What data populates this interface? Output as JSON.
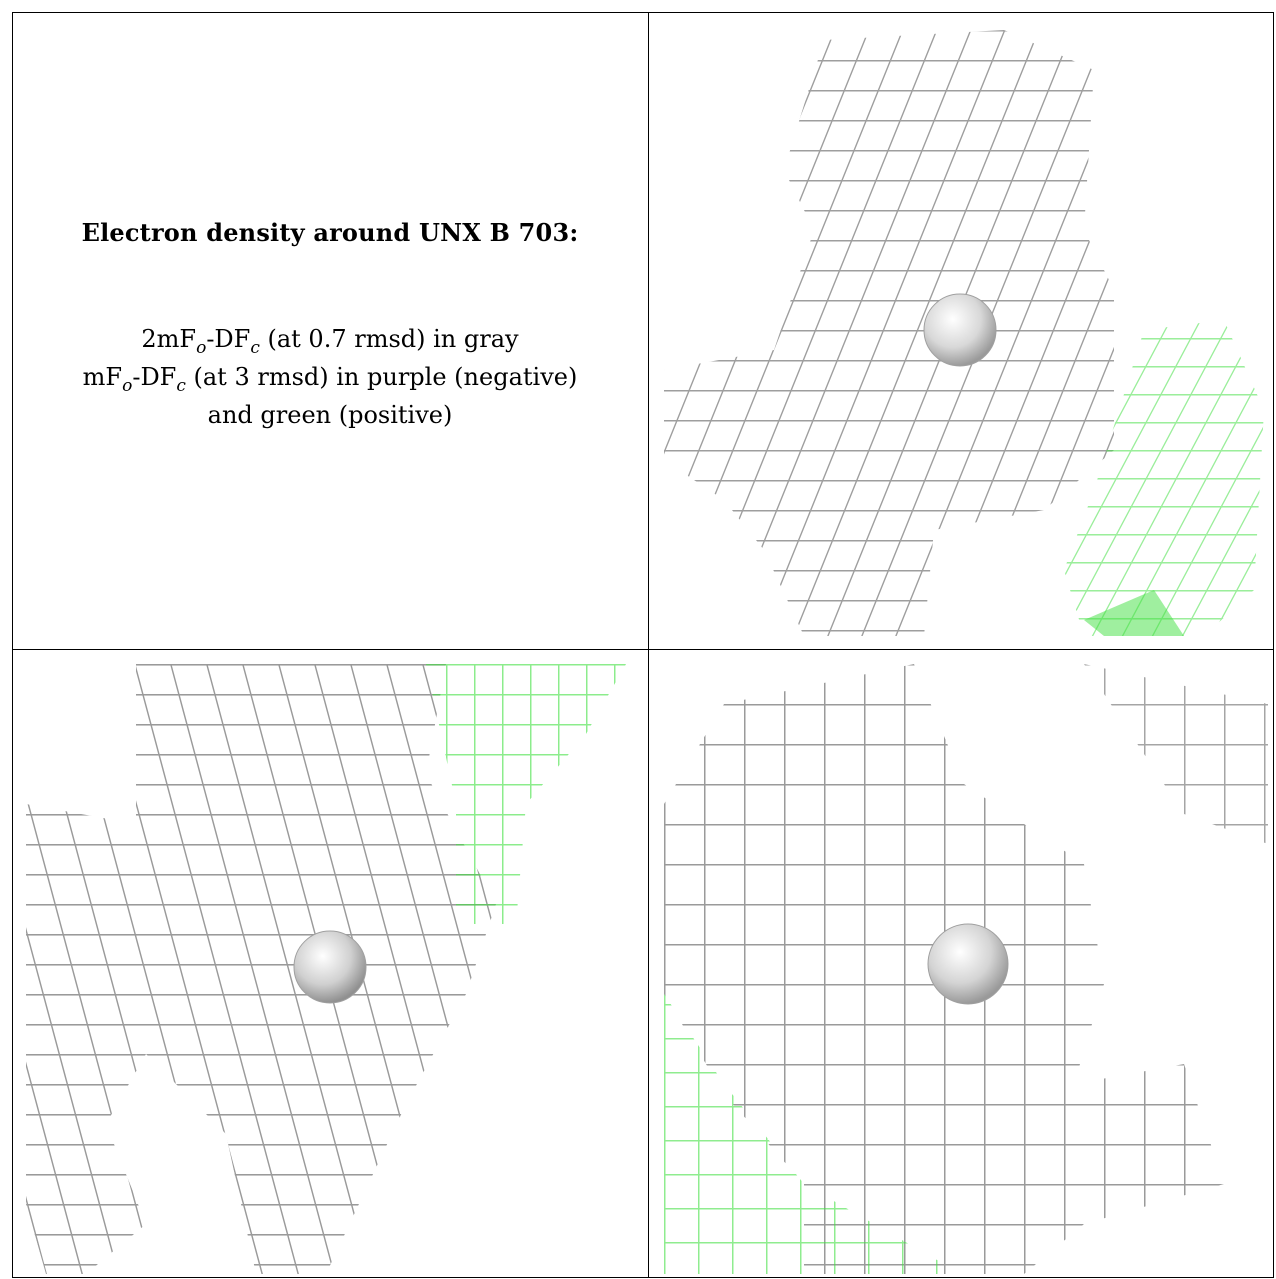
{
  "caption": {
    "title": "Electron density around UNX B 703:",
    "line1_a": "2mF",
    "line1_sub1": "o",
    "line1_b": "-DF",
    "line1_sub2": "c",
    "line1_c": " (at 0.7 rmsd) in gray",
    "line2_a": "mF",
    "line2_sub1": "o",
    "line2_b": "-DF",
    "line2_sub2": "c",
    "line2_c": " (at 3 rmsd) in purple (negative)",
    "line3": "and green (positive)"
  },
  "colors": {
    "gray_mesh": "#9a9a9a",
    "gray_mesh_dark": "#555555",
    "gray_mesh_light": "#d6d6d6",
    "green_mesh": "#3fe03f",
    "green_mesh_light": "#a8f0a8",
    "atom": "#cfcfcf"
  },
  "panels": [
    {
      "name": "top-right-view",
      "icon": "density-mesh-image"
    },
    {
      "name": "bottom-left-view",
      "icon": "density-mesh-image"
    },
    {
      "name": "bottom-right-view",
      "icon": "density-mesh-image"
    }
  ]
}
